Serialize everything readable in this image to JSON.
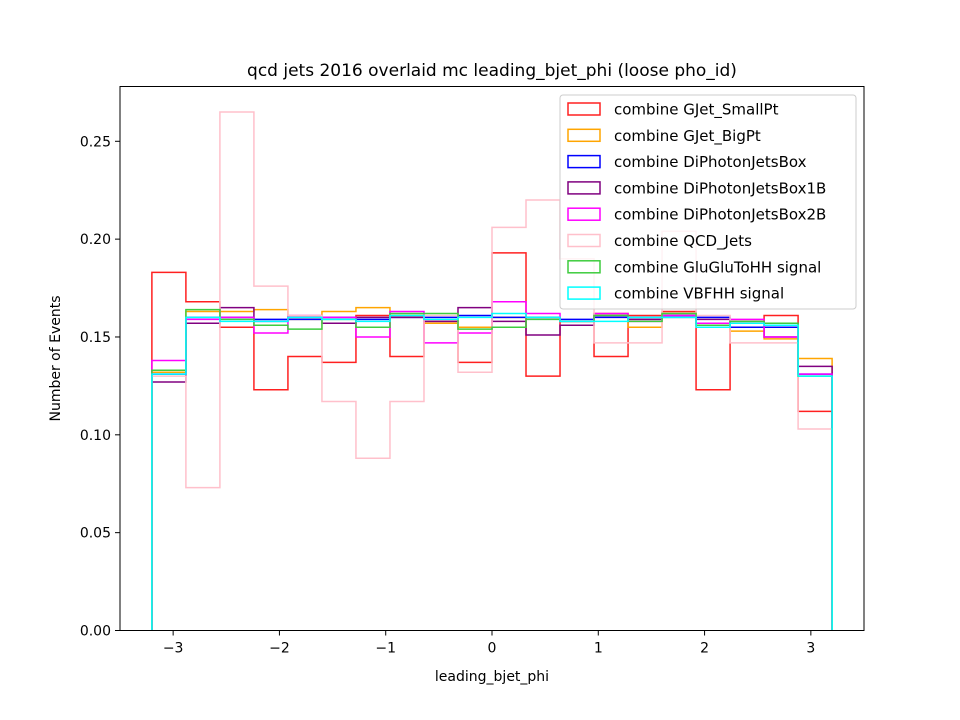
{
  "chart_data": {
    "type": "step-histogram",
    "title": "qcd jets 2016 overlaid mc leading_bjet_phi (loose pho_id)",
    "xlabel": "leading_bjet_phi",
    "ylabel": "Number of Events",
    "xlim": [
      -3.5,
      3.5
    ],
    "ylim": [
      0.0,
      0.278
    ],
    "xticks": [
      -3,
      -2,
      -1,
      0,
      1,
      2,
      3
    ],
    "xtick_labels": [
      "−3",
      "−2",
      "−1",
      "0",
      "1",
      "2",
      "3"
    ],
    "yticks": [
      0.0,
      0.05,
      0.1,
      0.15,
      0.2,
      0.25
    ],
    "ytick_labels": [
      "0.00",
      "0.05",
      "0.10",
      "0.15",
      "0.20",
      "0.25"
    ],
    "grid": false,
    "legend_position": "top-right",
    "bin_edges": [
      -3.2,
      -2.88,
      -2.56,
      -2.24,
      -1.92,
      -1.6,
      -1.28,
      -0.96,
      -0.64,
      -0.32,
      0.0,
      0.32,
      0.64,
      0.96,
      1.28,
      1.6,
      1.92,
      2.24,
      2.56,
      2.88,
      3.2
    ],
    "series": [
      {
        "name": "combine GJet_SmallPt",
        "color": "#ff2020",
        "values": [
          0.183,
          0.168,
          0.155,
          0.123,
          0.14,
          0.137,
          0.161,
          0.14,
          0.158,
          0.137,
          0.193,
          0.13,
          0.158,
          0.14,
          0.161,
          0.163,
          0.123,
          0.158,
          0.161,
          0.112
        ]
      },
      {
        "name": "combine GJet_BigPt",
        "color": "#ffa500",
        "values": [
          0.132,
          0.163,
          0.163,
          0.164,
          0.159,
          0.163,
          0.165,
          0.161,
          0.157,
          0.155,
          0.16,
          0.16,
          0.158,
          0.162,
          0.155,
          0.162,
          0.157,
          0.153,
          0.149,
          0.139
        ]
      },
      {
        "name": "combine DiPhotonJetsBox",
        "color": "#0000ff",
        "values": [
          0.131,
          0.16,
          0.16,
          0.159,
          0.159,
          0.16,
          0.159,
          0.16,
          0.16,
          0.161,
          0.16,
          0.16,
          0.159,
          0.16,
          0.16,
          0.161,
          0.16,
          0.155,
          0.155,
          0.131
        ]
      },
      {
        "name": "combine DiPhotonJetsBox1B",
        "color": "#800080",
        "values": [
          0.127,
          0.157,
          0.165,
          0.158,
          0.16,
          0.157,
          0.16,
          0.16,
          0.158,
          0.165,
          0.158,
          0.151,
          0.156,
          0.161,
          0.159,
          0.16,
          0.159,
          0.157,
          0.15,
          0.135
        ]
      },
      {
        "name": "combine DiPhotonJetsBox2B",
        "color": "#ff00ff",
        "values": [
          0.138,
          0.159,
          0.16,
          0.152,
          0.161,
          0.16,
          0.15,
          0.163,
          0.147,
          0.152,
          0.168,
          0.162,
          0.158,
          0.162,
          0.158,
          0.161,
          0.157,
          0.159,
          0.15,
          0.131
        ]
      },
      {
        "name": "combine QCD_Jets",
        "color": "#ffc0cb",
        "values": [
          0.13,
          0.073,
          0.265,
          0.176,
          0.161,
          0.117,
          0.088,
          0.117,
          0.161,
          0.132,
          0.206,
          0.22,
          0.19,
          0.147,
          0.147,
          0.204,
          0.161,
          0.147,
          0.147,
          0.103
        ]
      },
      {
        "name": "combine GluGluToHH signal",
        "color": "#3ecc3e",
        "values": [
          0.133,
          0.164,
          0.159,
          0.156,
          0.154,
          0.159,
          0.155,
          0.162,
          0.162,
          0.154,
          0.155,
          0.159,
          0.158,
          0.161,
          0.158,
          0.162,
          0.156,
          0.158,
          0.157,
          0.13
        ]
      },
      {
        "name": "combine VBFHH signal",
        "color": "#00ffff",
        "values": [
          0.131,
          0.16,
          0.158,
          0.158,
          0.16,
          0.159,
          0.158,
          0.161,
          0.159,
          0.16,
          0.162,
          0.16,
          0.158,
          0.158,
          0.16,
          0.16,
          0.155,
          0.157,
          0.156,
          0.13
        ]
      }
    ]
  }
}
